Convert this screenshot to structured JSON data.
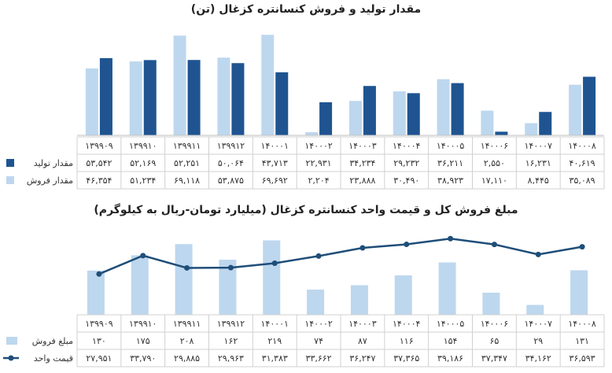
{
  "colors": {
    "dark_blue": "#1f5491",
    "light_blue": "#bdd7ee",
    "line_blue": "#1f4e79",
    "grid": "#d0d0d0"
  },
  "chart_data": [
    {
      "type": "bar",
      "title": "مقدار تولید و فروش کنسانتره کزغال (تن)",
      "categories": [
        "۱۳۹۹۰۹",
        "۱۳۹۹۱۰",
        "۱۳۹۹۱۱",
        "۱۳۹۹۱۲",
        "۱۴۰۰۰۱",
        "۱۴۰۰۰۲",
        "۱۴۰۰۰۳",
        "۱۴۰۰۰۴",
        "۱۴۰۰۰۵",
        "۱۴۰۰۰۶",
        "۱۴۰۰۰۷",
        "۱۴۰۰۰۸"
      ],
      "ylim": [
        0,
        72000
      ],
      "series": [
        {
          "name": "مقدار تولید",
          "color": "#1f5491",
          "values": [
            53542,
            52169,
            52251,
            50064,
            43713,
            22931,
            34234,
            29232,
            36211,
            2550,
            16231,
            40619
          ],
          "labels": [
            "۵۳,۵۴۲",
            "۵۲,۱۶۹",
            "۵۲,۲۵۱",
            "۵۰,۰۶۴",
            "۴۳,۷۱۳",
            "۲۲,۹۳۱",
            "۳۴,۲۳۴",
            "۲۹,۲۳۲",
            "۳۶,۲۱۱",
            "۲,۵۵۰",
            "۱۶,۲۳۱",
            "۴۰,۶۱۹"
          ]
        },
        {
          "name": "مقدار فروش",
          "color": "#bdd7ee",
          "values": [
            46354,
            51234,
            69118,
            53875,
            69692,
            2204,
            23888,
            30490,
            38923,
            17110,
            8445,
            35089
          ],
          "labels": [
            "۴۶,۳۵۴",
            "۵۱,۲۳۴",
            "۶۹,۱۱۸",
            "۵۳,۸۷۵",
            "۶۹,۶۹۲",
            "۲,۲۰۴",
            "۲۳,۸۸۸",
            "۳۰,۴۹۰",
            "۳۸,۹۲۳",
            "۱۷,۱۱۰",
            "۸,۴۴۵",
            "۳۵,۰۸۹"
          ]
        }
      ]
    },
    {
      "type": "bar+line",
      "title": "مبلغ فروش کل و قیمت واحد کنسانتره کزغال (میلیارد تومان-ریال به کیلوگرم)",
      "categories": [
        "۱۳۹۹۰۹",
        "۱۳۹۹۱۰",
        "۱۳۹۹۱۱",
        "۱۳۹۹۱۲",
        "۱۴۰۰۰۱",
        "۱۴۰۰۰۲",
        "۱۴۰۰۰۳",
        "۱۴۰۰۰۴",
        "۱۴۰۰۰۵",
        "۱۴۰۰۰۶",
        "۱۴۰۰۰۷",
        "۱۴۰۰۰۸"
      ],
      "series": [
        {
          "name": "مبلغ فروش",
          "kind": "bar",
          "color": "#bdd7ee",
          "ylim": [
            0,
            220
          ],
          "values": [
            130,
            175,
            208,
            162,
            219,
            74,
            87,
            116,
            154,
            65,
            29,
            131
          ],
          "labels": [
            "۱۳۰",
            "۱۷۵",
            "۲۰۸",
            "۱۶۲",
            "۲۱۹",
            "۷۴",
            "۸۷",
            "۱۱۶",
            "۱۵۴",
            "۶۵",
            "۲۹",
            "۱۳۱"
          ]
        },
        {
          "name": "قیمت واحد",
          "kind": "line",
          "color": "#1f4e79",
          "ylim": [
            0,
            40000
          ],
          "values": [
            27951,
            33790,
            29885,
            29963,
            31383,
            33662,
            36247,
            37365,
            39186,
            37347,
            34162,
            36593
          ],
          "labels": [
            "۲۷,۹۵۱",
            "۳۳,۷۹۰",
            "۲۹,۸۸۵",
            "۲۹,۹۶۳",
            "۳۱,۳۸۳",
            "۳۳,۶۶۲",
            "۳۶,۲۴۷",
            "۳۷,۳۶۵",
            "۳۹,۱۸۶",
            "۳۷,۳۴۷",
            "۳۴,۱۶۲",
            "۳۶,۵۹۳"
          ]
        }
      ]
    }
  ]
}
